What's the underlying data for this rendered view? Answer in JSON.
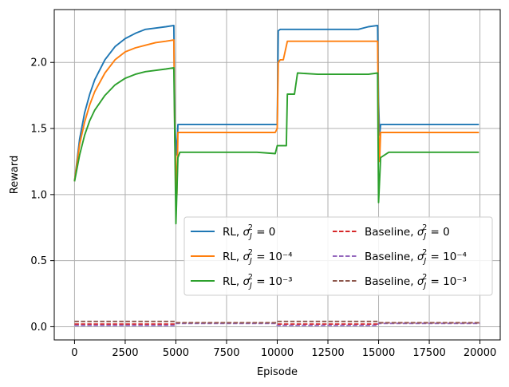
{
  "chart_data": {
    "type": "line",
    "title": "",
    "xlabel": "Episode",
    "ylabel": "Reward",
    "xlim": [
      -1000,
      21000
    ],
    "ylim": [
      -0.1,
      2.4
    ],
    "xticks": [
      0,
      2500,
      5000,
      7500,
      10000,
      12500,
      15000,
      17500,
      20000
    ],
    "xtick_labels": [
      "0",
      "2500",
      "5000",
      "7500",
      "10000",
      "12500",
      "15000",
      "17500",
      "20000"
    ],
    "yticks": [
      0.0,
      0.5,
      1.0,
      1.5,
      2.0
    ],
    "ytick_labels": [
      "0.0",
      "0.5",
      "1.0",
      "1.5",
      "2.0"
    ],
    "grid": true,
    "legend_position": "lower-right",
    "legend_columns": 2,
    "series": [
      {
        "label_prefix": "RL, ",
        "sigma_exp": "0",
        "color": "#1f77b4",
        "dash": "solid",
        "x": [
          0,
          250,
          500,
          750,
          1000,
          1500,
          2000,
          2500,
          3000,
          3500,
          4000,
          4500,
          4900,
          4950,
          5050,
          5100,
          5500,
          6000,
          7000,
          8000,
          9000,
          9900,
          10000,
          10050,
          10150,
          10500,
          11000,
          12000,
          13000,
          13500,
          14000,
          14500,
          14950,
          15000,
          15050,
          15100,
          15500,
          16000,
          17000,
          18000,
          19000,
          19950
        ],
        "y": [
          1.1,
          1.42,
          1.62,
          1.76,
          1.87,
          2.02,
          2.12,
          2.18,
          2.22,
          2.25,
          2.26,
          2.27,
          2.28,
          1.5,
          1.3,
          1.53,
          1.53,
          1.53,
          1.53,
          1.53,
          1.53,
          1.53,
          1.53,
          2.24,
          2.25,
          2.25,
          2.25,
          2.25,
          2.25,
          2.25,
          2.25,
          2.27,
          2.28,
          1.7,
          1.45,
          1.53,
          1.53,
          1.53,
          1.53,
          1.53,
          1.53,
          1.53
        ]
      },
      {
        "label_prefix": "RL, ",
        "sigma_exp": "10⁻⁴",
        "color": "#ff7f0e",
        "dash": "solid",
        "x": [
          0,
          250,
          500,
          750,
          1000,
          1500,
          2000,
          2500,
          3000,
          3500,
          4000,
          4500,
          4900,
          4950,
          5050,
          5100,
          5500,
          6000,
          7000,
          8000,
          9000,
          9900,
          10000,
          10050,
          10150,
          10300,
          10500,
          11000,
          12000,
          13000,
          14000,
          14500,
          14950,
          15000,
          15050,
          15100,
          15500,
          16000,
          17000,
          18000,
          19000,
          19950
        ],
        "y": [
          1.1,
          1.38,
          1.55,
          1.68,
          1.78,
          1.92,
          2.02,
          2.08,
          2.11,
          2.13,
          2.15,
          2.16,
          2.17,
          1.4,
          1.0,
          1.47,
          1.47,
          1.47,
          1.47,
          1.47,
          1.47,
          1.47,
          1.5,
          2.0,
          2.02,
          2.02,
          2.16,
          2.16,
          2.16,
          2.16,
          2.16,
          2.16,
          2.16,
          1.5,
          1.25,
          1.47,
          1.47,
          1.47,
          1.47,
          1.47,
          1.47,
          1.47
        ]
      },
      {
        "label_prefix": "RL, ",
        "sigma_exp": "10⁻³",
        "color": "#2ca02c",
        "dash": "solid",
        "x": [
          0,
          250,
          500,
          750,
          1000,
          1500,
          2000,
          2500,
          3000,
          3500,
          4000,
          4500,
          4900,
          5000,
          5100,
          5200,
          5500,
          6000,
          7000,
          8000,
          9000,
          9900,
          10000,
          10050,
          10450,
          10500,
          10850,
          11000,
          12000,
          13000,
          14000,
          14500,
          14950,
          15000,
          15100,
          15500,
          16000,
          17000,
          18000,
          19000,
          19950
        ],
        "y": [
          1.1,
          1.3,
          1.45,
          1.56,
          1.64,
          1.75,
          1.83,
          1.88,
          1.91,
          1.93,
          1.94,
          1.95,
          1.96,
          0.78,
          1.28,
          1.32,
          1.32,
          1.32,
          1.32,
          1.32,
          1.32,
          1.31,
          1.37,
          1.37,
          1.37,
          1.76,
          1.76,
          1.92,
          1.91,
          1.91,
          1.91,
          1.91,
          1.92,
          0.94,
          1.28,
          1.32,
          1.32,
          1.32,
          1.32,
          1.32,
          1.32
        ]
      },
      {
        "label_prefix": "Baseline, ",
        "sigma_exp": "0",
        "color": "#d62728",
        "dash": "dashed",
        "x": [
          0,
          4950,
          5000,
          9950,
          10000,
          14950,
          15000,
          20000
        ],
        "y": [
          0.02,
          0.02,
          0.03,
          0.03,
          0.02,
          0.02,
          0.03,
          0.03
        ]
      },
      {
        "label_prefix": "Baseline, ",
        "sigma_exp": "10⁻⁴",
        "color": "#9467bd",
        "dash": "dashed",
        "x": [
          0,
          4950,
          5000,
          9950,
          10000,
          14950,
          15000,
          20000
        ],
        "y": [
          0.01,
          0.01,
          0.025,
          0.025,
          0.01,
          0.01,
          0.025,
          0.025
        ]
      },
      {
        "label_prefix": "Baseline, ",
        "sigma_exp": "10⁻³",
        "color": "#8c564b",
        "dash": "dashed",
        "x": [
          0,
          4950,
          5000,
          9950,
          10000,
          14950,
          15000,
          20000
        ],
        "y": [
          0.04,
          0.04,
          0.03,
          0.03,
          0.04,
          0.04,
          0.03,
          0.03
        ]
      }
    ]
  }
}
